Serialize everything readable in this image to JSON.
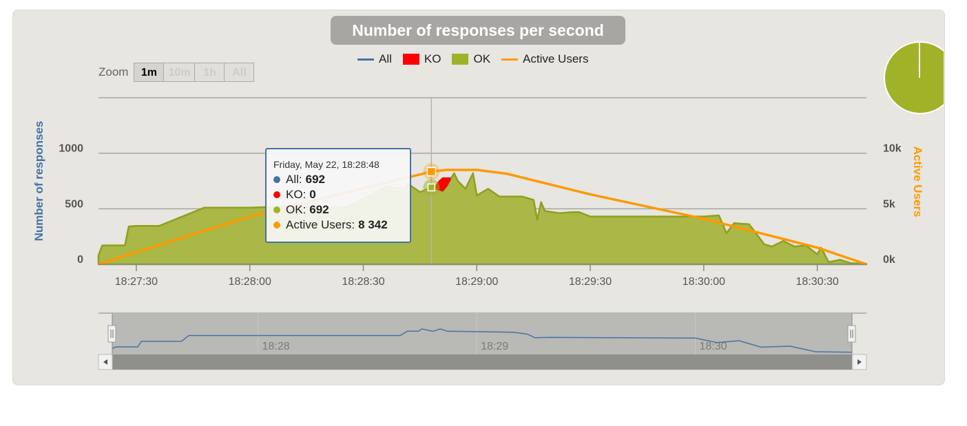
{
  "chart_data": {
    "type": "area",
    "title": "Number of responses per second",
    "legend": [
      {
        "name": "All",
        "color": "#4572a7",
        "style": "line"
      },
      {
        "name": "KO",
        "color": "#ff0000",
        "style": "box"
      },
      {
        "name": "OK",
        "color": "#a0b228",
        "style": "box"
      },
      {
        "name": "Active Users",
        "color": "#ff9900",
        "style": "line"
      }
    ],
    "legend_position": "top-center",
    "ylabel_left": "Number of responses",
    "ylabel_right": "Active Users",
    "yticks_left": [
      "0",
      "500",
      "1000"
    ],
    "yticks_right": [
      "0k",
      "5k",
      "10k"
    ],
    "ylim_left": [
      0,
      1500
    ],
    "ylim_right": [
      0,
      15000
    ],
    "xlim_seconds": [
      "18:27:20",
      "18:30:43"
    ],
    "xticks": [
      "18:27:30",
      "18:28:00",
      "18:28:30",
      "18:29:00",
      "18:29:30",
      "18:30:00",
      "18:30:30"
    ],
    "grid": true,
    "ok_series": {
      "name": "OK",
      "x": [
        "18:27:20",
        "18:27:21",
        "18:27:24",
        "18:27:27",
        "18:27:28",
        "18:27:30",
        "18:27:33",
        "18:27:36",
        "18:27:48",
        "18:28:00",
        "18:28:09",
        "18:28:13",
        "18:28:18",
        "18:28:26",
        "18:28:36",
        "18:28:39",
        "18:28:41",
        "18:28:42",
        "18:28:45",
        "18:28:48",
        "18:28:51",
        "18:28:52",
        "18:28:54",
        "18:28:55",
        "18:28:57",
        "18:28:59",
        "18:29:00",
        "18:29:03",
        "18:29:06",
        "18:29:12",
        "18:29:15",
        "18:29:16",
        "18:29:17",
        "18:29:18",
        "18:29:22",
        "18:29:25",
        "18:29:27",
        "18:29:30",
        "18:29:45",
        "18:30:00",
        "18:30:04",
        "18:30:06",
        "18:30:08",
        "18:30:12",
        "18:30:16",
        "18:30:18",
        "18:30:21",
        "18:30:24",
        "18:30:27",
        "18:30:30",
        "18:30:31",
        "18:30:33",
        "18:30:36",
        "18:30:39",
        "18:30:43"
      ],
      "values": [
        80,
        170,
        170,
        170,
        340,
        345,
        345,
        345,
        510,
        510,
        520,
        520,
        500,
        520,
        700,
        690,
        680,
        720,
        650,
        692,
        660,
        700,
        820,
        750,
        680,
        820,
        620,
        680,
        610,
        610,
        580,
        400,
        560,
        480,
        460,
        470,
        470,
        430,
        430,
        430,
        440,
        280,
        370,
        360,
        180,
        160,
        210,
        160,
        170,
        90,
        150,
        20,
        40,
        10,
        5
      ]
    },
    "ko_series": {
      "name": "KO",
      "x": [
        "18:28:49",
        "18:28:50",
        "18:28:51",
        "18:28:52",
        "18:28:53"
      ],
      "values": [
        20,
        80,
        120,
        80,
        20
      ]
    },
    "active_users_series": {
      "name": "Active Users",
      "x": [
        "18:27:20",
        "18:28:00",
        "18:28:48",
        "18:28:52",
        "18:29:00",
        "18:29:08",
        "18:29:30",
        "18:30:00",
        "18:30:30",
        "18:30:43"
      ],
      "values": [
        0,
        4300,
        8342,
        8500,
        8500,
        8150,
        6300,
        4100,
        1500,
        0
      ]
    },
    "tooltip": {
      "header": "Friday, May 22, 18:28:48",
      "all_label": "All",
      "all_value": "692",
      "ko_label": "KO",
      "ko_value": "0",
      "ok_label": "OK",
      "ok_value": "692",
      "au_label": "Active Users",
      "au_value": "8 342"
    },
    "crosshair_x": "18:28:48",
    "navigator": {
      "labels": [
        "18:28",
        "18:29",
        "18:30"
      ],
      "series": {
        "x": [
          "18:27:20",
          "18:27:21",
          "18:27:27",
          "18:27:28",
          "18:27:39",
          "18:27:41",
          "18:28:39",
          "18:28:41",
          "18:28:44",
          "18:28:45",
          "18:28:48",
          "18:28:50",
          "18:28:52",
          "18:29:10",
          "18:29:14",
          "18:29:16",
          "18:29:20",
          "18:30:00",
          "18:30:06",
          "18:30:12",
          "18:30:18",
          "18:30:26",
          "18:30:33",
          "18:30:43"
        ],
        "values": [
          120,
          170,
          170,
          340,
          340,
          520,
          520,
          650,
          650,
          720,
          650,
          720,
          650,
          620,
          560,
          450,
          460,
          440,
          300,
          360,
          160,
          190,
          20,
          5
        ]
      },
      "selection": "full range"
    },
    "pie": {
      "ok_fraction": 1.0,
      "color": "#a0b228"
    }
  },
  "zoom": {
    "label": "Zoom",
    "buttons": [
      "1m",
      "10m",
      "1h",
      "All"
    ],
    "active": "1m"
  }
}
